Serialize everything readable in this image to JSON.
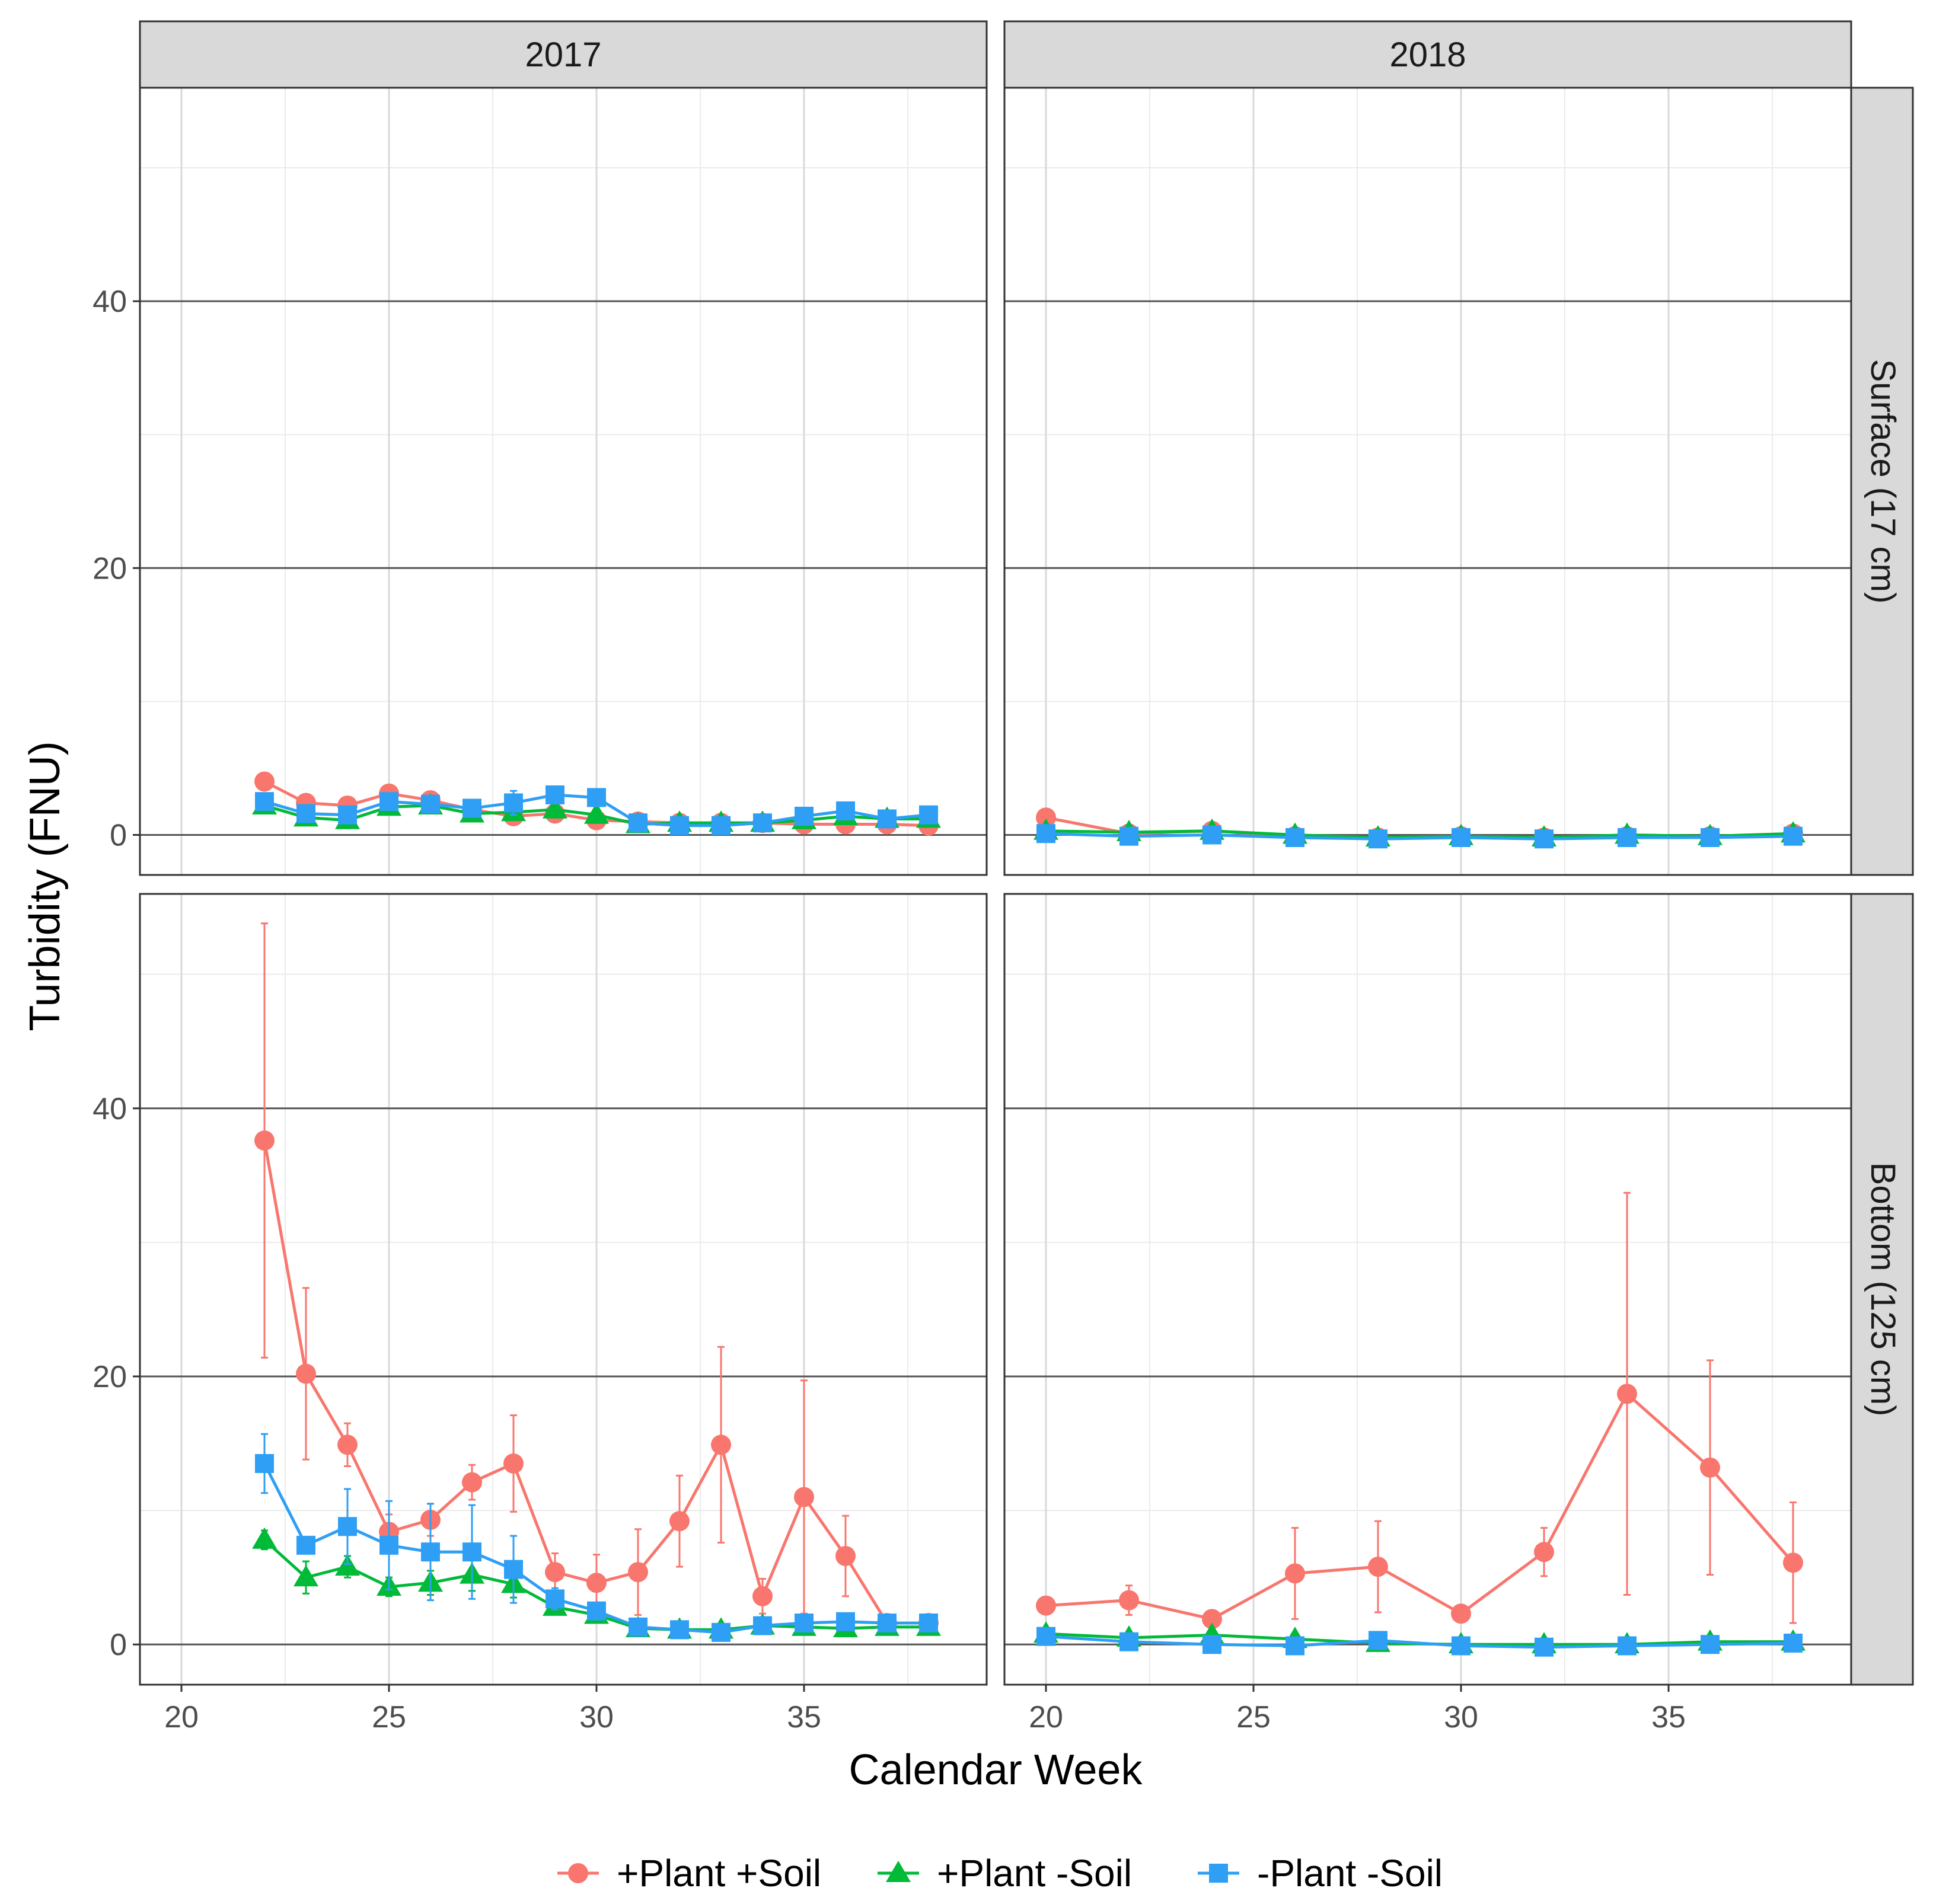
{
  "chart_data": {
    "type": "line",
    "facets": {
      "columns": [
        "2017",
        "2018"
      ],
      "rows": [
        "Surface (17 cm)",
        "Bottom (125 cm)"
      ]
    },
    "xlabel": "Calendar Week",
    "ylabel": "Turbidity (FNU)",
    "xlim": [
      19,
      39.4
    ],
    "ylim": [
      -3,
      56
    ],
    "xticks": [
      20,
      25,
      30,
      35
    ],
    "yticks": [
      0,
      20,
      40
    ],
    "grid": true,
    "legend_position": "bottom",
    "colors": {
      "+Plant +Soil": "#F8766D",
      "+Plant -Soil": "#00BA38",
      "-Plant -Soil": "#2E9FF5"
    },
    "legend": [
      {
        "name": "+Plant +Soil",
        "color": "#F8766D",
        "shape": "circle"
      },
      {
        "name": "+Plant -Soil",
        "color": "#00BA38",
        "shape": "triangle"
      },
      {
        "name": "-Plant -Soil",
        "color": "#2E9FF5",
        "shape": "square"
      }
    ],
    "panels": [
      {
        "year": "2017",
        "depth": "Surface (17 cm)",
        "series": [
          {
            "name": "+Plant +Soil",
            "x": [
              22,
              23,
              24,
              25,
              26,
              27,
              28,
              29,
              30,
              31,
              32,
              33,
              34,
              35,
              36,
              37,
              38
            ],
            "y": [
              4.0,
              2.4,
              2.2,
              3.1,
              2.6,
              1.9,
              1.4,
              1.6,
              1.1,
              1.0,
              0.9,
              0.9,
              0.9,
              0.8,
              0.8,
              0.8,
              0.7
            ],
            "err": [
              0.5,
              0.3,
              0.3,
              0.5,
              0.3,
              0.3,
              0.2,
              0.3,
              0.2,
              0.2,
              0.2,
              0.2,
              0.2,
              0.2,
              0.2,
              0.2,
              0.1
            ]
          },
          {
            "name": "+Plant -Soil",
            "x": [
              22,
              23,
              24,
              25,
              26,
              27,
              28,
              29,
              30,
              31,
              32,
              33,
              34,
              35,
              36,
              37,
              38
            ],
            "y": [
              2.2,
              1.3,
              1.1,
              2.1,
              2.2,
              1.6,
              1.7,
              1.9,
              1.5,
              0.8,
              0.9,
              0.9,
              0.9,
              1.1,
              1.4,
              1.2,
              1.2
            ],
            "err": [
              0.4,
              0.3,
              0.3,
              0.4,
              0.4,
              0.3,
              0.3,
              0.3,
              0.3,
              0.2,
              0.2,
              0.2,
              0.2,
              0.2,
              0.3,
              0.2,
              0.2
            ]
          },
          {
            "name": "-Plant -Soil",
            "x": [
              22,
              23,
              24,
              25,
              26,
              27,
              28,
              29,
              30,
              31,
              32,
              33,
              34,
              35,
              36,
              37,
              38
            ],
            "y": [
              2.5,
              1.6,
              1.5,
              2.5,
              2.3,
              2.0,
              2.4,
              3.0,
              2.8,
              0.9,
              0.7,
              0.7,
              0.9,
              1.4,
              1.8,
              1.2,
              1.5
            ],
            "err": [
              0.4,
              0.3,
              0.3,
              0.5,
              0.4,
              0.3,
              0.9,
              0.6,
              0.5,
              0.2,
              0.2,
              0.2,
              0.2,
              0.3,
              0.4,
              0.3,
              0.3
            ]
          }
        ]
      },
      {
        "year": "2018",
        "depth": "Surface (17 cm)",
        "series": [
          {
            "name": "+Plant +Soil",
            "x": [
              20,
              22,
              24,
              26,
              28,
              30,
              32,
              34,
              36,
              38
            ],
            "y": [
              1.3,
              0.1,
              0.3,
              -0.1,
              -0.2,
              -0.1,
              -0.2,
              -0.1,
              -0.1,
              0.1
            ],
            "err": [
              0.2,
              0.1,
              0.1,
              0.1,
              0.1,
              0.1,
              0.1,
              0.1,
              0.1,
              0.1
            ]
          },
          {
            "name": "+Plant -Soil",
            "x": [
              20,
              22,
              24,
              26,
              28,
              30,
              32,
              34,
              36,
              38
            ],
            "y": [
              0.3,
              0.2,
              0.3,
              0.0,
              -0.2,
              -0.1,
              -0.2,
              0.0,
              -0.1,
              0.1
            ],
            "err": [
              0.1,
              0.1,
              0.1,
              0.1,
              0.1,
              0.1,
              0.1,
              0.1,
              0.1,
              0.1
            ]
          },
          {
            "name": "-Plant -Soil",
            "x": [
              20,
              22,
              24,
              26,
              28,
              30,
              32,
              34,
              36,
              38
            ],
            "y": [
              0.1,
              -0.1,
              0.0,
              -0.2,
              -0.3,
              -0.2,
              -0.3,
              -0.2,
              -0.2,
              -0.1
            ],
            "err": [
              0.1,
              0.1,
              0.1,
              0.1,
              0.1,
              0.1,
              0.1,
              0.1,
              0.1,
              0.1
            ]
          }
        ]
      },
      {
        "year": "2017",
        "depth": "Bottom (125 cm)",
        "series": [
          {
            "name": "+Plant +Soil",
            "x": [
              22,
              23,
              24,
              25,
              26,
              27,
              28,
              29,
              30,
              31,
              32,
              33,
              34,
              35,
              36,
              37,
              38
            ],
            "y": [
              37.6,
              20.2,
              14.9,
              8.4,
              9.3,
              12.1,
              13.5,
              5.4,
              4.6,
              5.4,
              9.2,
              14.9,
              3.6,
              11.0,
              6.6,
              1.6,
              1.6
            ],
            "err": [
              16.2,
              6.4,
              1.6,
              1.3,
              1.2,
              1.3,
              3.6,
              1.4,
              2.1,
              3.2,
              3.4,
              7.3,
              1.3,
              8.7,
              3.0,
              0.3,
              0.3
            ]
          },
          {
            "name": "+Plant -Soil",
            "x": [
              22,
              23,
              24,
              25,
              26,
              27,
              28,
              29,
              30,
              31,
              32,
              33,
              34,
              35,
              36,
              37,
              38
            ],
            "y": [
              7.8,
              5.0,
              5.8,
              4.3,
              4.6,
              5.2,
              4.5,
              2.8,
              2.2,
              1.2,
              1.1,
              1.1,
              1.4,
              1.3,
              1.2,
              1.3,
              1.3
            ],
            "err": [
              0.7,
              1.2,
              0.8,
              0.7,
              0.9,
              1.2,
              1.0,
              0.5,
              0.4,
              0.3,
              0.3,
              0.3,
              0.3,
              0.3,
              0.3,
              0.3,
              0.3
            ]
          },
          {
            "name": "-Plant -Soil",
            "x": [
              22,
              23,
              24,
              25,
              26,
              27,
              28,
              29,
              30,
              31,
              32,
              33,
              34,
              35,
              36,
              37,
              38
            ],
            "y": [
              13.5,
              7.4,
              8.8,
              7.4,
              6.9,
              6.9,
              5.6,
              3.4,
              2.5,
              1.3,
              1.1,
              0.9,
              1.4,
              1.6,
              1.7,
              1.6,
              1.6
            ],
            "err": [
              2.2,
              0.6,
              2.8,
              3.3,
              3.6,
              3.5,
              2.5,
              0.8,
              0.6,
              0.3,
              0.3,
              0.2,
              0.3,
              0.3,
              0.3,
              0.3,
              0.3
            ]
          }
        ]
      },
      {
        "year": "2018",
        "depth": "Bottom (125 cm)",
        "series": [
          {
            "name": "+Plant +Soil",
            "x": [
              20,
              22,
              24,
              26,
              28,
              30,
              32,
              34,
              36,
              38
            ],
            "y": [
              2.9,
              3.3,
              1.9,
              5.3,
              5.8,
              2.3,
              6.9,
              18.7,
              13.2,
              6.1
            ],
            "err": [
              0.3,
              1.1,
              0.3,
              3.4,
              3.4,
              0.3,
              1.8,
              15.0,
              8.0,
              4.5
            ]
          },
          {
            "name": "+Plant -Soil",
            "x": [
              20,
              22,
              24,
              26,
              28,
              30,
              32,
              34,
              36,
              38
            ],
            "y": [
              0.8,
              0.5,
              0.7,
              0.4,
              0.1,
              0.0,
              0.0,
              0.0,
              0.2,
              0.2
            ],
            "err": [
              0.1,
              0.1,
              0.1,
              0.1,
              0.1,
              0.1,
              0.1,
              0.1,
              0.1,
              0.1
            ]
          },
          {
            "name": "-Plant -Soil",
            "x": [
              20,
              22,
              24,
              26,
              28,
              30,
              32,
              34,
              36,
              38
            ],
            "y": [
              0.6,
              0.2,
              0.0,
              -0.1,
              0.3,
              -0.1,
              -0.2,
              -0.1,
              0.0,
              0.1
            ],
            "err": [
              0.1,
              0.1,
              0.1,
              0.1,
              0.1,
              0.1,
              0.1,
              0.1,
              0.1,
              0.1
            ]
          }
        ]
      }
    ]
  }
}
